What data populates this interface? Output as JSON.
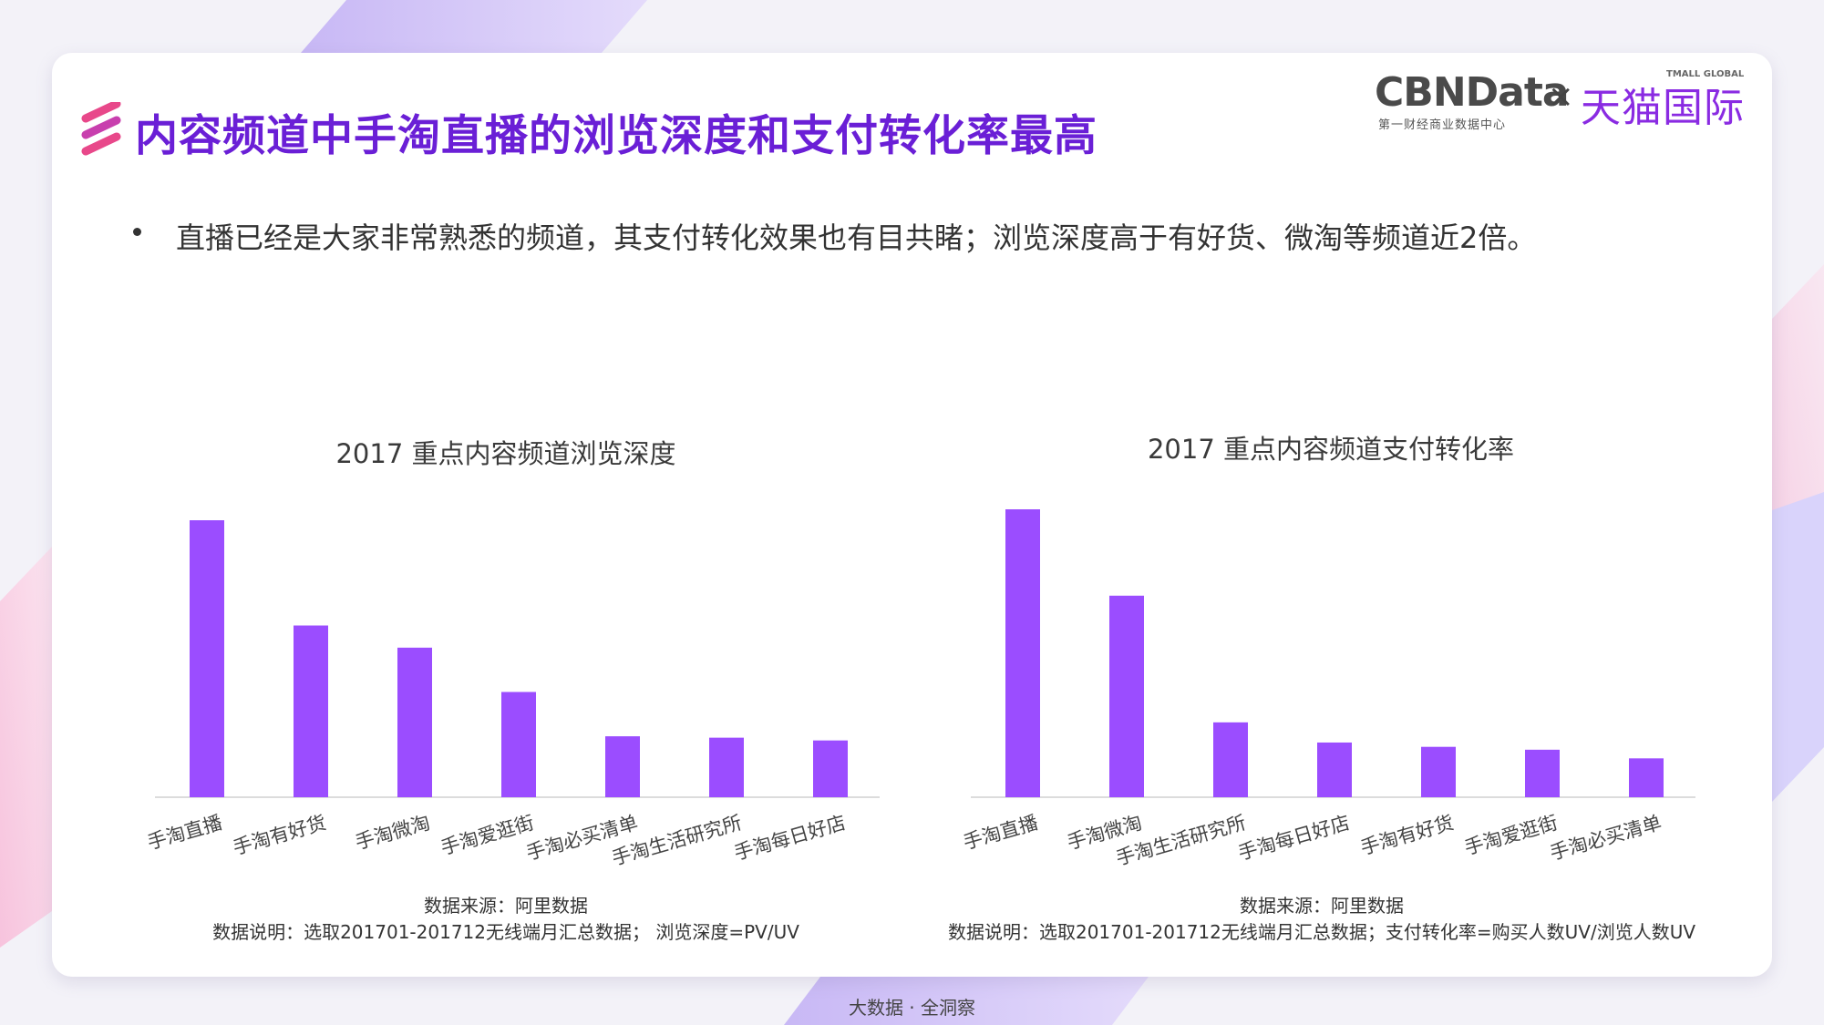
{
  "header": {
    "title": "内容频道中手淘直播的浏览深度和支付转化率最高",
    "logo_cbn": "CBNData",
    "logo_cbn_sub": "第一财经商业数据中心",
    "logo_times": "×",
    "logo_tmall": "天猫国际",
    "logo_tmall_global": "TMALL GLOBAL"
  },
  "bullet": "直播已经是大家非常熟悉的频道，其支付转化效果也有目共睹；浏览深度高于有好货、微淘等频道近2倍。",
  "colors": {
    "bar": "#9b4dff",
    "title": "#6a1fd6",
    "accent_pink": "#e8488a"
  },
  "chart_data": [
    {
      "type": "bar",
      "title": "2017 重点内容频道浏览深度",
      "categories": [
        "手淘直播",
        "手淘有好货",
        "手淘微淘",
        "手淘爱逛街",
        "手淘必买清单",
        "手淘生活研究所",
        "手淘每日好店"
      ],
      "values": [
        100,
        62,
        54,
        38,
        22,
        21.5,
        20.5
      ],
      "ylim": [
        0,
        110
      ],
      "grid": false,
      "legend": "none",
      "source": "数据来源：阿里数据",
      "note": "数据说明：选取201701-201712无线端月汇总数据； 浏览深度=PV/UV"
    },
    {
      "type": "bar",
      "title": "2017 重点内容频道支付转化率",
      "categories": [
        "手淘直播",
        "手淘微淘",
        "手淘生活研究所",
        "手淘每日好店",
        "手淘有好货",
        "手淘爱逛街",
        "手淘必买清单"
      ],
      "values": [
        100,
        70,
        26,
        19,
        17.5,
        16.5,
        13.5
      ],
      "ylim": [
        0,
        106
      ],
      "grid": false,
      "legend": "none",
      "source": "数据来源：阿里数据",
      "note": "数据说明：选取201701-201712无线端月汇总数据；支付转化率=购买人数UV/浏览人数UV"
    }
  ],
  "footer": "大数据 · 全洞察"
}
